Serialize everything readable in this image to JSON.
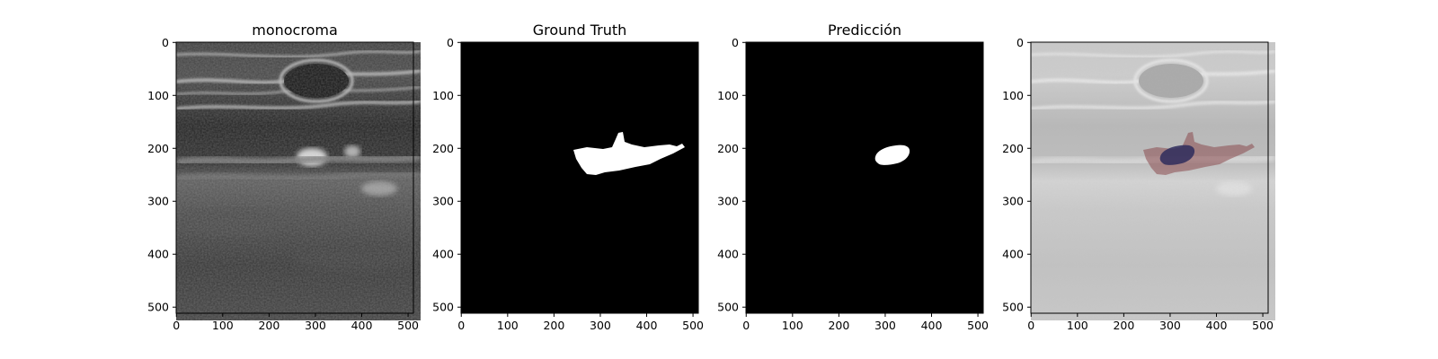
{
  "panels": [
    {
      "title": "monocroma",
      "kind": "ultrasound"
    },
    {
      "title": "Ground Truth",
      "kind": "mask-gt"
    },
    {
      "title": "Predicción",
      "kind": "mask-pred"
    },
    {
      "title": "",
      "kind": "overlay"
    }
  ],
  "axes": {
    "x_ticks": [
      "0",
      "100",
      "200",
      "300",
      "400",
      "500"
    ],
    "y_ticks": [
      "0",
      "100",
      "200",
      "300",
      "400",
      "500"
    ],
    "x_range": [
      0,
      511
    ],
    "y_range": [
      0,
      511
    ]
  },
  "colors": {
    "mask_background": "#000000",
    "mask_foreground": "#ffffff",
    "overlay_ground_truth": "#8b4a4f",
    "overlay_prediction": "#2e2c5c"
  }
}
